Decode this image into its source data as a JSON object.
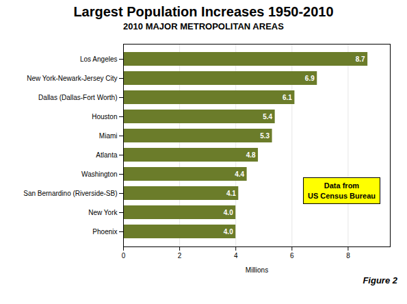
{
  "chart_data": {
    "type": "bar",
    "orientation": "horizontal",
    "title": "Largest Population Increases 1950-2010",
    "subtitle": "2010 MAJOR METROPOLITAN AREAS",
    "categories": [
      "Phoenix",
      "New York",
      "San Bernardino (Riverside-SB)",
      "Washington",
      "Atlanta",
      "Miami",
      "Houston",
      "Dallas (Dallas-Fort Worth)",
      "New York-Newark-Jersey City",
      "Los Angeles"
    ],
    "values": [
      4.0,
      4.0,
      4.1,
      4.4,
      4.8,
      5.3,
      5.4,
      6.1,
      6.9,
      8.7
    ],
    "value_labels": [
      "4.0",
      "4.0",
      "4.1",
      "4.4",
      "4.8",
      "5.3",
      "5.4",
      "6.1",
      "6.9",
      "8.7"
    ],
    "data_labels": true,
    "color": "#6b7c2a",
    "xlabel": "Millions",
    "xlim": [
      0,
      9.5
    ],
    "xticks": [
      0,
      2,
      4,
      6,
      8
    ],
    "grid": true,
    "annotation": "Data from\nUS Census Bureau",
    "caption": "Figure 2"
  }
}
